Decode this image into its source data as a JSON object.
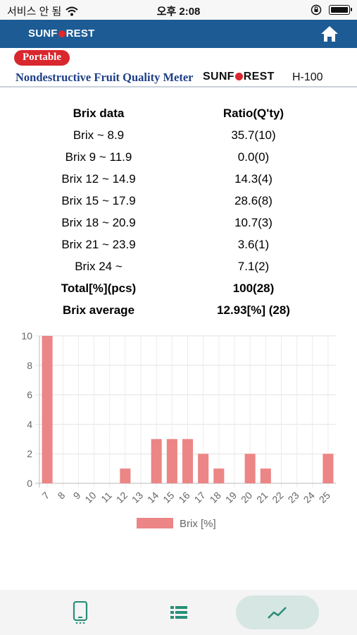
{
  "status_bar": {
    "carrier": "서비스 안 됨",
    "time": "오후 2:08"
  },
  "header": {
    "logo_pre": "SUNF",
    "logo_post": "REST"
  },
  "banner": {
    "badge": "Portable",
    "title": "Nondestructive Fruit Quality Meter",
    "brand_pre": "SUNF",
    "brand_post": "REST",
    "model": "H-100"
  },
  "table": {
    "headers": [
      "Brix data",
      "Ratio(Q'ty)"
    ],
    "rows": [
      [
        "Brix ~ 8.9",
        "35.7(10)"
      ],
      [
        "Brix 9 ~ 11.9",
        "0.0(0)"
      ],
      [
        "Brix 12 ~ 14.9",
        "14.3(4)"
      ],
      [
        "Brix 15 ~ 17.9",
        "28.6(8)"
      ],
      [
        "Brix 18 ~ 20.9",
        "10.7(3)"
      ],
      [
        "Brix 21 ~ 23.9",
        "3.6(1)"
      ],
      [
        "Brix 24 ~",
        "7.1(2)"
      ]
    ],
    "total_label": "Total[%](pcs)",
    "total_value": "100(28)",
    "average_label": "Brix average",
    "average_value": "12.93[%] (28)"
  },
  "chart_data": {
    "type": "bar",
    "categories": [
      "7",
      "8",
      "9",
      "10",
      "11",
      "12",
      "13",
      "14",
      "15",
      "16",
      "17",
      "18",
      "19",
      "20",
      "21",
      "22",
      "23",
      "24",
      "25"
    ],
    "series": [
      {
        "name": "Brix [%]",
        "values": [
          10,
          0,
          0,
          0,
          0,
          1,
          0,
          3,
          3,
          3,
          2,
          1,
          0,
          2,
          1,
          0,
          0,
          0,
          2
        ],
        "color": "#ec8585"
      }
    ],
    "ylim": [
      0,
      10
    ],
    "yticks": [
      0,
      2,
      4,
      6,
      8,
      10
    ],
    "grid": true,
    "legend": "bottom"
  },
  "bottom_nav": {
    "items": [
      {
        "icon": "phone-icon"
      },
      {
        "icon": "list-icon"
      },
      {
        "icon": "chart-line-icon",
        "active": true
      }
    ],
    "accent": "#2a8e78"
  }
}
